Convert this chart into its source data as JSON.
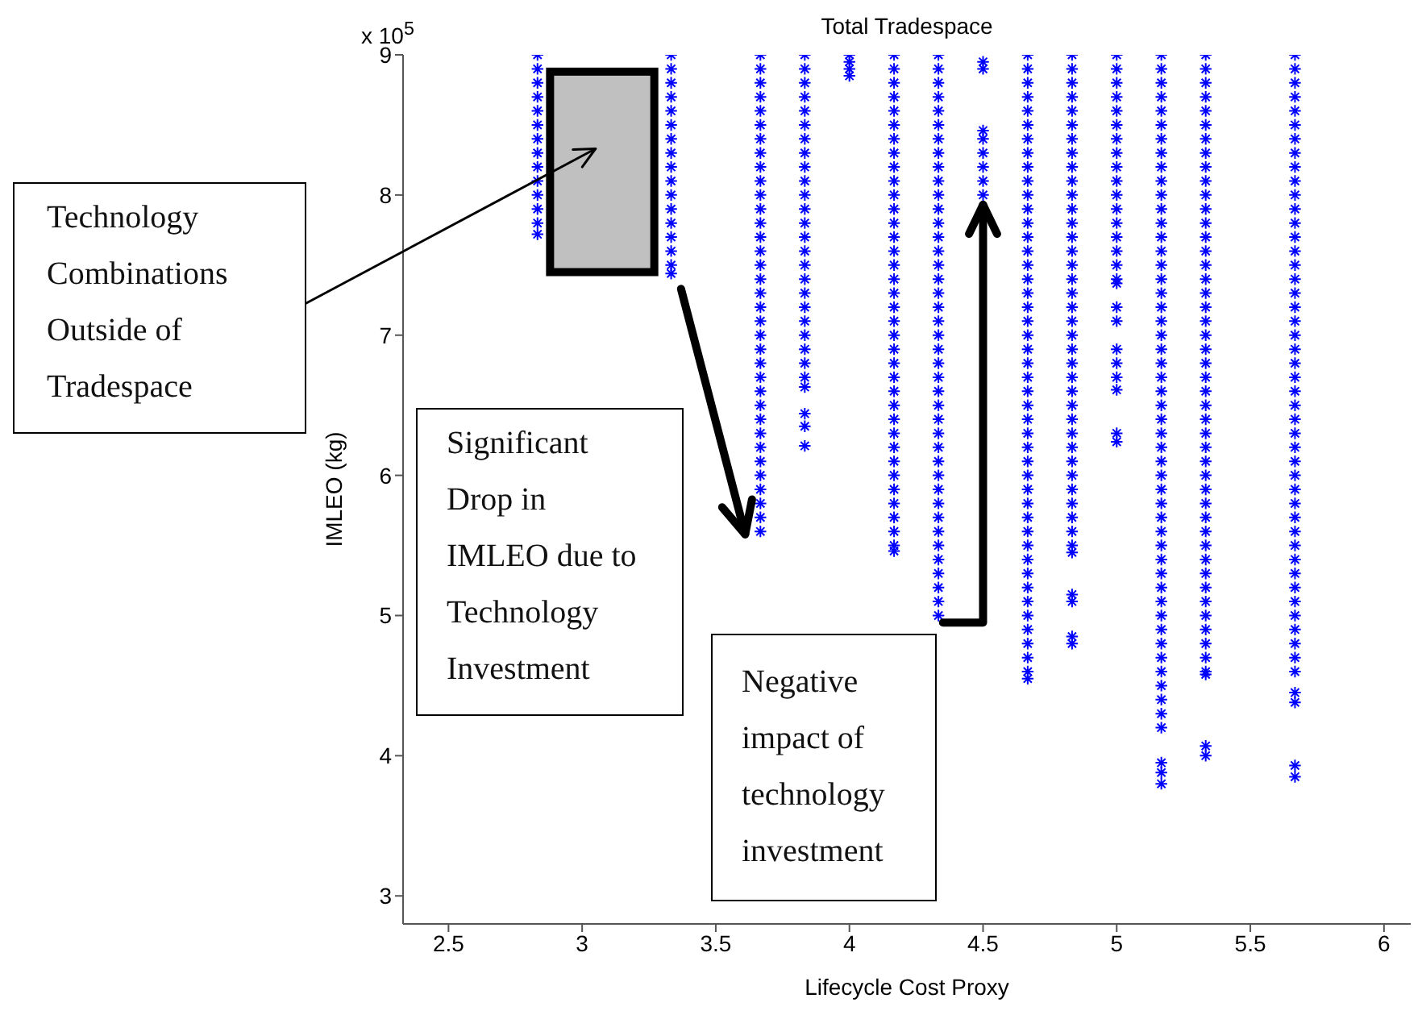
{
  "chart_data": {
    "type": "scatter",
    "title": "Total Tradespace",
    "xlabel": "Lifecycle Cost Proxy",
    "ylabel": "IMLEO (kg)",
    "annotations": [
      "x 10$^{5}$",
      "Technology Combinations Outside of Tradespace",
      "Significant Drop in IMLEO due to Technology Investment",
      "Negative impact of technology investment"
    ],
    "xlim": [
      2.33,
      6.1
    ],
    "xticks": [
      2.5,
      3,
      3.5,
      4,
      4.5,
      5,
      5.5,
      6
    ],
    "ylim": [
      2.8,
      9
    ],
    "yticks": [
      3,
      4,
      5,
      6,
      7,
      8,
      9
    ],
    "marker": "cross",
    "series": [
      {
        "color": "#0000ff",
        "x": [
          2.833,
          2.833,
          2.833,
          2.833,
          2.833,
          2.833,
          2.833,
          2.833,
          2.833,
          2.833,
          2.833,
          2.833,
          2.833,
          2.833
        ],
        "values": [
          9,
          8.9,
          8.8,
          8.7,
          8.6,
          8.5,
          8.4,
          8.3,
          8.2,
          8.1,
          8,
          7.9,
          7.8,
          7.72
        ]
      },
      {
        "color": "#0000ff",
        "x": [
          3.333,
          3.333,
          3.333,
          3.333,
          3.333,
          3.333,
          3.333,
          3.333,
          3.333,
          3.333,
          3.333,
          3.333,
          3.333,
          3.333,
          3.333,
          3.333,
          3.333
        ],
        "values": [
          9,
          8.9,
          8.8,
          8.7,
          8.6,
          8.5,
          8.4,
          8.3,
          8.2,
          8.1,
          8,
          7.9,
          7.8,
          7.7,
          7.6,
          7.5,
          7.44
        ]
      },
      {
        "color": "#0000ff",
        "x": [
          3.667,
          3.667,
          3.667,
          3.667,
          3.667,
          3.667,
          3.667,
          3.667,
          3.667,
          3.667,
          3.667,
          3.667,
          3.667,
          3.667,
          3.667,
          3.667,
          3.667,
          3.667,
          3.667,
          3.667,
          3.667,
          3.667,
          3.667,
          3.667,
          3.667,
          3.667,
          3.667,
          3.667,
          3.667,
          3.667,
          3.667,
          3.667,
          3.667,
          3.667,
          3.667
        ],
        "values": [
          9,
          8.9,
          8.8,
          8.7,
          8.6,
          8.5,
          8.4,
          8.3,
          8.2,
          8.1,
          8,
          7.9,
          7.8,
          7.7,
          7.6,
          7.5,
          7.4,
          7.3,
          7.2,
          7.1,
          7,
          6.9,
          6.8,
          6.7,
          6.6,
          6.5,
          6.4,
          6.3,
          6.2,
          6.1,
          6,
          5.9,
          5.8,
          5.7,
          5.6
        ]
      },
      {
        "color": "#0000ff",
        "x": [
          3.833,
          3.833,
          3.833,
          3.833,
          3.833,
          3.833,
          3.833,
          3.833,
          3.833,
          3.833,
          3.833,
          3.833,
          3.833,
          3.833,
          3.833,
          3.833,
          3.833,
          3.833,
          3.833,
          3.833,
          3.833,
          3.833,
          3.833,
          3.833,
          3.833,
          3.833,
          3.833,
          3.833
        ],
        "values": [
          9,
          8.9,
          8.8,
          8.7,
          8.6,
          8.5,
          8.4,
          8.3,
          8.2,
          8.1,
          8,
          7.9,
          7.8,
          7.7,
          7.6,
          7.5,
          7.4,
          7.3,
          7.2,
          7.1,
          7,
          6.9,
          6.8,
          6.7,
          6.63,
          6.44,
          6.35,
          6.21
        ]
      },
      {
        "color": "#0000ff",
        "x": [
          4,
          4,
          4,
          4
        ],
        "values": [
          9,
          8.95,
          8.9,
          8.85
        ]
      },
      {
        "color": "#0000ff",
        "x": [
          4.167,
          4.167,
          4.167,
          4.167,
          4.167,
          4.167,
          4.167,
          4.167,
          4.167,
          4.167,
          4.167,
          4.167,
          4.167,
          4.167,
          4.167,
          4.167,
          4.167,
          4.167,
          4.167,
          4.167,
          4.167,
          4.167,
          4.167,
          4.167,
          4.167,
          4.167,
          4.167,
          4.167,
          4.167,
          4.167,
          4.167,
          4.167,
          4.167,
          4.167,
          4.167,
          4.167,
          4.167
        ],
        "values": [
          9,
          8.9,
          8.8,
          8.7,
          8.6,
          8.5,
          8.4,
          8.3,
          8.2,
          8.1,
          8,
          7.9,
          7.8,
          7.7,
          7.6,
          7.5,
          7.4,
          7.3,
          7.2,
          7.1,
          7,
          6.9,
          6.8,
          6.7,
          6.6,
          6.5,
          6.4,
          6.3,
          6.2,
          6.1,
          6,
          5.9,
          5.8,
          5.7,
          5.6,
          5.5,
          5.46
        ]
      },
      {
        "color": "#0000ff",
        "x": [
          4.333,
          4.333,
          4.333,
          4.333,
          4.333,
          4.333,
          4.333,
          4.333,
          4.333,
          4.333,
          4.333,
          4.333,
          4.333,
          4.333,
          4.333,
          4.333,
          4.333,
          4.333,
          4.333,
          4.333,
          4.333,
          4.333,
          4.333,
          4.333,
          4.333,
          4.333,
          4.333,
          4.333,
          4.333,
          4.333,
          4.333,
          4.333,
          4.333,
          4.333,
          4.333,
          4.333,
          4.333,
          4.333,
          4.333,
          4.333,
          4.333
        ],
        "values": [
          9,
          8.9,
          8.8,
          8.7,
          8.6,
          8.5,
          8.4,
          8.3,
          8.2,
          8.1,
          8,
          7.9,
          7.8,
          7.7,
          7.6,
          7.5,
          7.4,
          7.3,
          7.2,
          7.1,
          7,
          6.9,
          6.8,
          6.7,
          6.6,
          6.5,
          6.4,
          6.3,
          6.2,
          6.1,
          6,
          5.9,
          5.8,
          5.7,
          5.6,
          5.5,
          5.4,
          5.3,
          5.2,
          5.1,
          5
        ]
      },
      {
        "color": "#0000ff",
        "x": [
          4.5,
          4.5,
          4.5,
          4.5,
          4.5,
          4.5,
          4.5,
          4.5
        ],
        "values": [
          8.95,
          8.9,
          8.46,
          8.4,
          8.3,
          8.2,
          8.1,
          8
        ]
      },
      {
        "color": "#0000ff",
        "x": [
          4.667,
          4.667,
          4.667,
          4.667,
          4.667,
          4.667,
          4.667,
          4.667,
          4.667,
          4.667,
          4.667,
          4.667,
          4.667,
          4.667,
          4.667,
          4.667,
          4.667,
          4.667,
          4.667,
          4.667,
          4.667,
          4.667,
          4.667,
          4.667,
          4.667,
          4.667,
          4.667,
          4.667,
          4.667,
          4.667,
          4.667,
          4.667,
          4.667,
          4.667,
          4.667,
          4.667,
          4.667,
          4.667,
          4.667,
          4.667,
          4.667,
          4.667,
          4.667,
          4.667,
          4.667,
          4.667
        ],
        "values": [
          9,
          8.9,
          8.8,
          8.7,
          8.6,
          8.5,
          8.4,
          8.3,
          8.2,
          8.1,
          8,
          7.9,
          7.8,
          7.7,
          7.6,
          7.5,
          7.4,
          7.3,
          7.2,
          7.1,
          7,
          6.9,
          6.8,
          6.7,
          6.6,
          6.5,
          6.4,
          6.3,
          6.2,
          6.1,
          6,
          5.9,
          5.8,
          5.7,
          5.6,
          5.5,
          5.4,
          5.3,
          5.2,
          5.1,
          5,
          4.9,
          4.8,
          4.7,
          4.6,
          4.55
        ]
      },
      {
        "color": "#0000ff",
        "x": [
          4.833,
          4.833,
          4.833,
          4.833,
          4.833,
          4.833,
          4.833,
          4.833,
          4.833,
          4.833,
          4.833,
          4.833,
          4.833,
          4.833,
          4.833,
          4.833,
          4.833,
          4.833,
          4.833,
          4.833,
          4.833,
          4.833,
          4.833,
          4.833,
          4.833,
          4.833,
          4.833,
          4.833,
          4.833,
          4.833,
          4.833,
          4.833,
          4.833,
          4.833,
          4.833,
          4.833,
          4.833,
          4.833,
          4.833,
          4.833,
          4.833
        ],
        "values": [
          9,
          8.9,
          8.8,
          8.7,
          8.6,
          8.5,
          8.4,
          8.3,
          8.2,
          8.1,
          8,
          7.9,
          7.8,
          7.7,
          7.6,
          7.5,
          7.4,
          7.3,
          7.2,
          7.1,
          7,
          6.9,
          6.8,
          6.7,
          6.6,
          6.5,
          6.4,
          6.3,
          6.2,
          6.1,
          6,
          5.9,
          5.8,
          5.7,
          5.6,
          5.5,
          5.45,
          5.15,
          5.1,
          4.85,
          4.8
        ]
      },
      {
        "color": "#0000ff",
        "x": [
          5,
          5,
          5,
          5,
          5,
          5,
          5,
          5,
          5,
          5,
          5,
          5,
          5,
          5,
          5,
          5,
          5,
          5,
          5,
          5,
          5,
          5,
          5,
          5,
          5,
          5
        ],
        "values": [
          9,
          8.9,
          8.8,
          8.7,
          8.6,
          8.5,
          8.4,
          8.3,
          8.2,
          8.1,
          8,
          7.9,
          7.8,
          7.7,
          7.6,
          7.5,
          7.4,
          7.37,
          7.2,
          7.1,
          6.9,
          6.8,
          6.7,
          6.61,
          6.3,
          6.24
        ]
      },
      {
        "color": "#0000ff",
        "x": [
          5.167,
          5.167,
          5.167,
          5.167,
          5.167,
          5.167,
          5.167,
          5.167,
          5.167,
          5.167,
          5.167,
          5.167,
          5.167,
          5.167,
          5.167,
          5.167,
          5.167,
          5.167,
          5.167,
          5.167,
          5.167,
          5.167,
          5.167,
          5.167,
          5.167,
          5.167,
          5.167,
          5.167,
          5.167,
          5.167,
          5.167,
          5.167,
          5.167,
          5.167,
          5.167,
          5.167,
          5.167,
          5.167,
          5.167,
          5.167,
          5.167,
          5.167,
          5.167,
          5.167,
          5.167,
          5.167,
          5.167,
          5.167,
          5.167,
          5.167,
          5.167,
          5.167
        ],
        "values": [
          9,
          8.9,
          8.8,
          8.7,
          8.6,
          8.5,
          8.4,
          8.3,
          8.2,
          8.1,
          8,
          7.9,
          7.8,
          7.7,
          7.6,
          7.5,
          7.4,
          7.3,
          7.2,
          7.1,
          7,
          6.9,
          6.8,
          6.7,
          6.6,
          6.5,
          6.4,
          6.3,
          6.2,
          6.1,
          6,
          5.9,
          5.8,
          5.7,
          5.6,
          5.5,
          5.4,
          5.3,
          5.2,
          5.1,
          5,
          4.9,
          4.8,
          4.7,
          4.6,
          4.5,
          4.4,
          4.3,
          4.2,
          3.95,
          3.88,
          3.8
        ]
      },
      {
        "color": "#0000ff",
        "x": [
          5.333,
          5.333,
          5.333,
          5.333,
          5.333,
          5.333,
          5.333,
          5.333,
          5.333,
          5.333,
          5.333,
          5.333,
          5.333,
          5.333,
          5.333,
          5.333,
          5.333,
          5.333,
          5.333,
          5.333,
          5.333,
          5.333,
          5.333,
          5.333,
          5.333,
          5.333,
          5.333,
          5.333,
          5.333,
          5.333,
          5.333,
          5.333,
          5.333,
          5.333,
          5.333,
          5.333,
          5.333,
          5.333,
          5.333,
          5.333,
          5.333,
          5.333,
          5.333,
          5.333,
          5.333,
          5.333,
          5.333,
          5.333
        ],
        "values": [
          9,
          8.9,
          8.8,
          8.7,
          8.6,
          8.5,
          8.4,
          8.3,
          8.2,
          8.1,
          8,
          7.9,
          7.8,
          7.7,
          7.6,
          7.5,
          7.4,
          7.3,
          7.2,
          7.1,
          7,
          6.9,
          6.8,
          6.7,
          6.6,
          6.5,
          6.4,
          6.3,
          6.2,
          6.1,
          6,
          5.9,
          5.8,
          5.7,
          5.6,
          5.5,
          5.4,
          5.3,
          5.2,
          5.1,
          5,
          4.9,
          4.8,
          4.7,
          4.6,
          4.58,
          4.07,
          4
        ]
      },
      {
        "color": "#0000ff",
        "x": [
          5.667,
          5.667,
          5.667,
          5.667,
          5.667,
          5.667,
          5.667,
          5.667,
          5.667,
          5.667,
          5.667,
          5.667,
          5.667,
          5.667,
          5.667,
          5.667,
          5.667,
          5.667,
          5.667,
          5.667,
          5.667,
          5.667,
          5.667,
          5.667,
          5.667,
          5.667,
          5.667,
          5.667,
          5.667,
          5.667,
          5.667,
          5.667,
          5.667,
          5.667,
          5.667,
          5.667,
          5.667,
          5.667,
          5.667,
          5.667,
          5.667,
          5.667,
          5.667,
          5.667,
          5.667,
          5.667,
          5.667,
          5.667,
          5.667
        ],
        "values": [
          9,
          8.9,
          8.8,
          8.7,
          8.6,
          8.5,
          8.4,
          8.3,
          8.2,
          8.1,
          8,
          7.9,
          7.8,
          7.7,
          7.6,
          7.5,
          7.4,
          7.3,
          7.2,
          7.1,
          7,
          6.9,
          6.8,
          6.7,
          6.6,
          6.5,
          6.4,
          6.3,
          6.2,
          6.1,
          6,
          5.9,
          5.8,
          5.7,
          5.6,
          5.5,
          5.4,
          5.3,
          5.2,
          5.1,
          5,
          4.9,
          4.8,
          4.7,
          4.6,
          4.45,
          4.38,
          3.93,
          3.85
        ]
      }
    ]
  }
}
